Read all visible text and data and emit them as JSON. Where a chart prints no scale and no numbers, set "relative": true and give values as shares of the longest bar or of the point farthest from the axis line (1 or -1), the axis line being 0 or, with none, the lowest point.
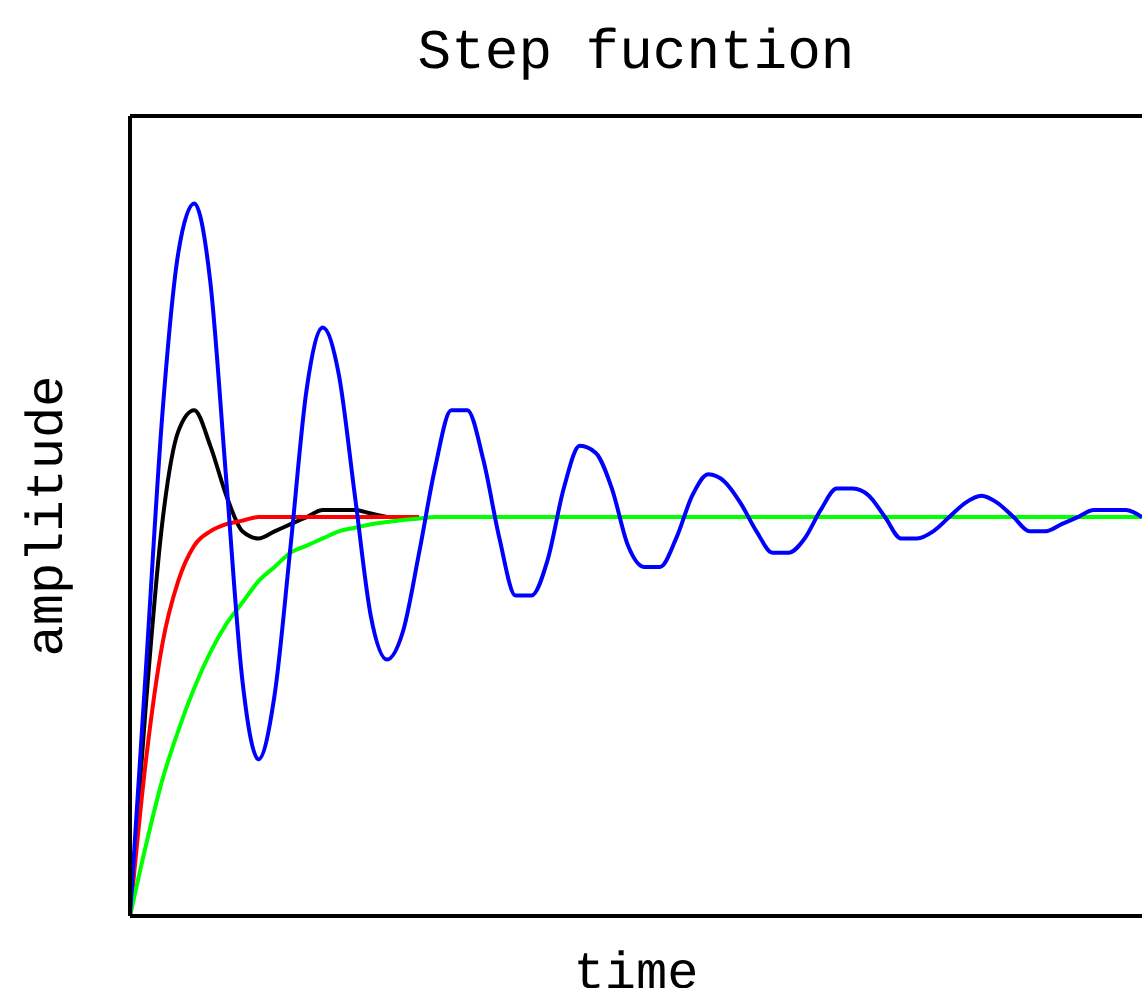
{
  "chart_data": {
    "type": "line",
    "title": "Step fucntion",
    "xlabel": "time",
    "ylabel": "amplitude",
    "relative": true,
    "legend": false,
    "grid": false,
    "marker": "none",
    "line_style": "solid",
    "tick_labels": false,
    "categories": [
      null,
      null,
      null,
      null,
      null,
      null,
      null,
      null,
      null,
      null,
      null,
      null,
      null,
      null,
      null,
      null,
      null,
      null,
      null,
      null,
      null,
      null,
      null,
      null,
      null,
      null,
      null,
      null,
      null,
      null,
      null,
      null,
      null,
      null,
      null,
      null,
      null,
      null,
      null,
      null,
      null,
      null,
      null,
      null,
      null,
      null,
      null,
      null,
      null,
      null,
      null,
      null,
      null,
      null,
      null,
      null,
      null,
      null,
      null,
      null,
      null,
      null,
      null,
      null
    ],
    "series": [
      {
        "color": "#000000",
        "values": [
          0,
          0.3,
          0.55,
          0.68,
          0.71,
          0.66,
          0.59,
          0.54,
          0.53,
          0.54,
          0.55,
          0.56,
          0.57,
          0.57,
          0.57,
          0.565,
          0.56,
          null,
          null,
          null,
          null,
          null,
          null,
          null,
          null,
          null,
          null,
          null,
          null,
          null,
          null,
          null,
          null,
          null,
          null,
          null,
          null,
          null,
          null,
          null,
          null,
          null,
          null,
          null,
          null,
          null,
          null,
          null,
          null,
          null,
          null,
          null,
          null,
          null,
          null,
          null,
          null,
          null,
          null,
          null,
          null,
          null,
          null,
          null
        ]
      },
      {
        "color": "#ff0000",
        "values": [
          0,
          0.22,
          0.38,
          0.47,
          0.52,
          0.54,
          0.55,
          0.555,
          0.56,
          0.56,
          0.56,
          0.56,
          0.56,
          0.56,
          0.56,
          0.56,
          0.56,
          0.56,
          0.56,
          null,
          null,
          null,
          null,
          null,
          null,
          null,
          null,
          null,
          null,
          null,
          null,
          null,
          null,
          null,
          null,
          null,
          null,
          null,
          null,
          null,
          null,
          null,
          null,
          null,
          null,
          null,
          null,
          null,
          null,
          null,
          null,
          null,
          null,
          null,
          null,
          null,
          null,
          null,
          null,
          null,
          null,
          null,
          null,
          null
        ]
      },
      {
        "color": "#00ff00",
        "values": [
          0,
          0.1,
          0.19,
          0.26,
          0.32,
          0.37,
          0.41,
          0.44,
          0.47,
          0.49,
          0.51,
          0.52,
          0.53,
          0.54,
          0.545,
          0.55,
          0.553,
          0.556,
          0.558,
          0.56,
          0.56,
          0.56,
          0.56,
          0.56,
          0.56,
          0.56,
          0.56,
          0.56,
          0.56,
          0.56,
          0.56,
          0.56,
          0.56,
          0.56,
          0.56,
          0.56,
          0.56,
          0.56,
          0.56,
          0.56,
          0.56,
          0.56,
          0.56,
          0.56,
          0.56,
          0.56,
          0.56,
          0.56,
          0.56,
          0.56,
          0.56,
          0.56,
          0.56,
          0.56,
          0.56,
          0.56,
          0.56,
          0.56,
          0.56,
          0.56,
          0.56,
          0.56,
          0.56,
          0.56
        ]
      },
      {
        "color": "#0000ff",
        "values": [
          0,
          0.35,
          0.7,
          0.93,
          1.0,
          0.89,
          0.61,
          0.33,
          0.22,
          0.31,
          0.52,
          0.74,
          0.826,
          0.76,
          0.59,
          0.42,
          0.36,
          0.4,
          0.51,
          0.63,
          0.71,
          0.71,
          0.64,
          0.53,
          0.45,
          0.45,
          0.5,
          0.6,
          0.66,
          0.65,
          0.6,
          0.52,
          0.49,
          0.49,
          0.53,
          0.59,
          0.62,
          0.61,
          0.58,
          0.54,
          0.51,
          0.51,
          0.53,
          0.57,
          0.6,
          0.6,
          0.59,
          0.56,
          0.53,
          0.53,
          0.54,
          0.56,
          0.58,
          0.59,
          0.58,
          0.56,
          0.54,
          0.54,
          0.55,
          0.56,
          0.57,
          0.57,
          0.57,
          0.56
        ]
      }
    ]
  }
}
